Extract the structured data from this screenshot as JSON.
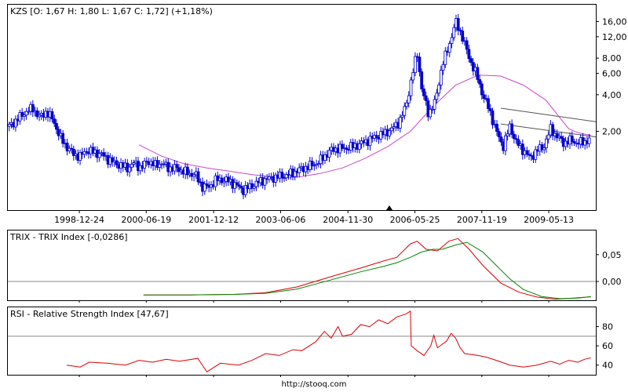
{
  "footer": "http://stooq.com",
  "colors": {
    "candle": "#0000cc",
    "moving_average": "#cc44cc",
    "trend_line": "#555555",
    "trix": "#dd0000",
    "trix_signal": "#008800",
    "rsi": "#dd0000",
    "reference_line": "#888888",
    "grid": "#cccccc"
  },
  "chart_data": [
    {
      "type": "candlestick",
      "title": "KZS [O: 1,67  H: 1,80  L: 1,67  C: 1,72] (+1,18%)",
      "y_scale": "log",
      "ylim": [
        0.45,
        22
      ],
      "y_ticks": [
        2.0,
        4.0,
        6.0,
        8.0,
        12.0,
        16.0
      ],
      "y_tick_labels": [
        "2,00",
        "4,00",
        "6,00",
        "8,00",
        "12,00",
        "16,00"
      ],
      "x_ticks": [
        "1998-12-24",
        "2000-06-19",
        "2001-12-12",
        "2003-06-06",
        "2004-11-30",
        "2006-05-25",
        "2007-11-19",
        "2009-05-13"
      ],
      "x_tick_years": [
        1998.98,
        2000.46,
        2001.95,
        2003.43,
        2004.92,
        2006.4,
        2007.88,
        2009.36
      ],
      "x_range_years": [
        1997.4,
        2010.4
      ],
      "marker_at": "2006-05-25",
      "price_series": [
        [
          1997.43,
          2.2
        ],
        [
          1997.6,
          2.5
        ],
        [
          1997.8,
          2.9
        ],
        [
          1997.95,
          3.1
        ],
        [
          1998.1,
          2.6
        ],
        [
          1998.25,
          2.9
        ],
        [
          1998.4,
          2.5
        ],
        [
          1998.55,
          1.8
        ],
        [
          1998.7,
          1.5
        ],
        [
          1998.85,
          1.3
        ],
        [
          1999.0,
          1.25
        ],
        [
          1999.15,
          1.4
        ],
        [
          1999.3,
          1.35
        ],
        [
          1999.45,
          1.3
        ],
        [
          1999.6,
          1.2
        ],
        [
          1999.75,
          1.1
        ],
        [
          1999.9,
          1.05
        ],
        [
          2000.05,
          1.0
        ],
        [
          2000.2,
          1.1
        ],
        [
          2000.35,
          1.0
        ],
        [
          2000.5,
          1.15
        ],
        [
          2000.65,
          1.05
        ],
        [
          2000.8,
          1.1
        ],
        [
          2000.95,
          1.0
        ],
        [
          2001.1,
          1.0
        ],
        [
          2001.25,
          0.95
        ],
        [
          2001.4,
          0.9
        ],
        [
          2001.55,
          0.88
        ],
        [
          2001.7,
          0.7
        ],
        [
          2001.85,
          0.7
        ],
        [
          2002.0,
          0.8
        ],
        [
          2002.15,
          0.8
        ],
        [
          2002.3,
          0.78
        ],
        [
          2002.45,
          0.72
        ],
        [
          2002.6,
          0.66
        ],
        [
          2002.75,
          0.7
        ],
        [
          2002.9,
          0.75
        ],
        [
          2003.05,
          0.8
        ],
        [
          2003.2,
          0.82
        ],
        [
          2003.35,
          0.85
        ],
        [
          2003.5,
          0.86
        ],
        [
          2003.65,
          0.9
        ],
        [
          2003.8,
          0.95
        ],
        [
          2003.95,
          1.0
        ],
        [
          2004.1,
          1.05
        ],
        [
          2004.25,
          1.1
        ],
        [
          2004.4,
          1.25
        ],
        [
          2004.55,
          1.4
        ],
        [
          2004.7,
          1.45
        ],
        [
          2004.85,
          1.45
        ],
        [
          2005.0,
          1.5
        ],
        [
          2005.15,
          1.55
        ],
        [
          2005.3,
          1.65
        ],
        [
          2005.45,
          1.75
        ],
        [
          2005.6,
          1.85
        ],
        [
          2005.75,
          1.95
        ],
        [
          2005.9,
          2.1
        ],
        [
          2006.05,
          2.4
        ],
        [
          2006.2,
          3.2
        ],
        [
          2006.35,
          6.0
        ],
        [
          2006.45,
          9.0
        ],
        [
          2006.55,
          4.5
        ],
        [
          2006.7,
          2.8
        ],
        [
          2006.85,
          3.5
        ],
        [
          2007.0,
          7.0
        ],
        [
          2007.15,
          10.0
        ],
        [
          2007.3,
          16.0
        ],
        [
          2007.45,
          12.0
        ],
        [
          2007.6,
          8.0
        ],
        [
          2007.75,
          6.0
        ],
        [
          2007.9,
          4.0
        ],
        [
          2008.05,
          3.0
        ],
        [
          2008.2,
          2.0
        ],
        [
          2008.35,
          1.5
        ],
        [
          2008.5,
          2.2
        ],
        [
          2008.65,
          1.6
        ],
        [
          2008.8,
          1.4
        ],
        [
          2008.95,
          1.2
        ],
        [
          2009.1,
          1.4
        ],
        [
          2009.25,
          1.5
        ],
        [
          2009.4,
          2.1
        ],
        [
          2009.55,
          1.8
        ],
        [
          2009.7,
          1.6
        ],
        [
          2009.85,
          1.7
        ],
        [
          2010.0,
          1.6
        ],
        [
          2010.15,
          1.65
        ],
        [
          2010.29,
          1.72
        ]
      ],
      "moving_average": [
        [
          2000.3,
          1.55
        ],
        [
          2000.8,
          1.25
        ],
        [
          2001.3,
          1.08
        ],
        [
          2001.8,
          1.0
        ],
        [
          2002.3,
          0.94
        ],
        [
          2002.8,
          0.88
        ],
        [
          2003.3,
          0.84
        ],
        [
          2003.8,
          0.84
        ],
        [
          2004.3,
          0.9
        ],
        [
          2004.8,
          1.0
        ],
        [
          2005.3,
          1.2
        ],
        [
          2005.8,
          1.5
        ],
        [
          2006.3,
          2.0
        ],
        [
          2006.8,
          3.2
        ],
        [
          2007.3,
          4.8
        ],
        [
          2007.8,
          5.8
        ],
        [
          2008.3,
          5.7
        ],
        [
          2008.8,
          4.8
        ],
        [
          2009.3,
          3.6
        ],
        [
          2009.6,
          2.6
        ],
        [
          2009.8,
          2.1
        ],
        [
          2010.0,
          1.95
        ],
        [
          2010.29,
          1.85
        ]
      ],
      "trend_lines": [
        [
          [
            2008.3,
            3.1
          ],
          [
            2010.4,
            2.4
          ]
        ],
        [
          [
            2008.3,
            2.3
          ],
          [
            2010.4,
            1.8
          ]
        ]
      ]
    },
    {
      "type": "line",
      "title": "TRIX - TRIX Index [-0,0286]",
      "ylim": [
        -0.035,
        0.095
      ],
      "y_ticks": [
        0.0,
        0.05
      ],
      "y_tick_labels": [
        "0,00",
        "0,05"
      ],
      "reference_value": 0.0,
      "series": [
        {
          "points": [
            [
              2000.4,
              -0.025
            ],
            [
              2001.4,
              -0.025
            ],
            [
              2002.4,
              -0.024
            ],
            [
              2003.1,
              -0.021
            ],
            [
              2003.8,
              -0.01
            ],
            [
              2004.5,
              0.008
            ],
            [
              2005.2,
              0.025
            ],
            [
              2005.7,
              0.038
            ],
            [
              2006.0,
              0.045
            ],
            [
              2006.3,
              0.07
            ],
            [
              2006.45,
              0.075
            ],
            [
              2006.65,
              0.06
            ],
            [
              2006.9,
              0.057
            ],
            [
              2007.15,
              0.075
            ],
            [
              2007.35,
              0.08
            ],
            [
              2007.6,
              0.06
            ],
            [
              2007.9,
              0.03
            ],
            [
              2008.3,
              -0.003
            ],
            [
              2008.7,
              -0.02
            ],
            [
              2009.1,
              -0.029
            ],
            [
              2009.5,
              -0.033
            ],
            [
              2009.9,
              -0.031
            ],
            [
              2010.29,
              -0.0286
            ]
          ]
        },
        {
          "points": [
            [
              2000.4,
              -0.025
            ],
            [
              2001.4,
              -0.025
            ],
            [
              2002.4,
              -0.024
            ],
            [
              2003.1,
              -0.022
            ],
            [
              2003.8,
              -0.014
            ],
            [
              2004.5,
              0.002
            ],
            [
              2005.2,
              0.018
            ],
            [
              2005.7,
              0.028
            ],
            [
              2006.0,
              0.035
            ],
            [
              2006.3,
              0.045
            ],
            [
              2006.55,
              0.055
            ],
            [
              2006.8,
              0.06
            ],
            [
              2007.0,
              0.06
            ],
            [
              2007.3,
              0.068
            ],
            [
              2007.55,
              0.073
            ],
            [
              2007.9,
              0.055
            ],
            [
              2008.2,
              0.03
            ],
            [
              2008.5,
              0.005
            ],
            [
              2008.8,
              -0.015
            ],
            [
              2009.2,
              -0.028
            ],
            [
              2009.6,
              -0.032
            ],
            [
              2010.0,
              -0.031
            ],
            [
              2010.29,
              -0.028
            ]
          ]
        }
      ]
    },
    {
      "type": "line",
      "title": "RSI - Relative Strength Index [47,67]",
      "ylim": [
        30,
        100
      ],
      "y_ticks": [
        40,
        60,
        80
      ],
      "y_tick_labels": [
        "40",
        "60",
        "80"
      ],
      "reference_value": 70,
      "series": [
        {
          "points": [
            [
              1998.7,
              40
            ],
            [
              1999.0,
              38
            ],
            [
              1999.2,
              43
            ],
            [
              1999.6,
              42
            ],
            [
              2000.0,
              40
            ],
            [
              2000.3,
              45
            ],
            [
              2000.6,
              43
            ],
            [
              2000.9,
              46
            ],
            [
              2001.2,
              44
            ],
            [
              2001.6,
              47
            ],
            [
              2001.8,
              33
            ],
            [
              2002.1,
              42
            ],
            [
              2002.5,
              40
            ],
            [
              2002.8,
              45
            ],
            [
              2003.1,
              52
            ],
            [
              2003.4,
              50
            ],
            [
              2003.7,
              56
            ],
            [
              2003.9,
              55
            ],
            [
              2004.2,
              64
            ],
            [
              2004.4,
              75
            ],
            [
              2004.55,
              68
            ],
            [
              2004.7,
              80
            ],
            [
              2004.8,
              70
            ],
            [
              2005.0,
              72
            ],
            [
              2005.2,
              82
            ],
            [
              2005.4,
              80
            ],
            [
              2005.6,
              87
            ],
            [
              2005.8,
              83
            ],
            [
              2006.0,
              90
            ],
            [
              2006.2,
              93
            ],
            [
              2006.3,
              96
            ],
            [
              2006.32,
              60
            ],
            [
              2006.45,
              55
            ],
            [
              2006.6,
              50
            ],
            [
              2006.75,
              60
            ],
            [
              2006.82,
              71
            ],
            [
              2006.9,
              58
            ],
            [
              2007.1,
              65
            ],
            [
              2007.2,
              73
            ],
            [
              2007.3,
              68
            ],
            [
              2007.4,
              58
            ],
            [
              2007.5,
              52
            ],
            [
              2007.8,
              50
            ],
            [
              2008.0,
              48
            ],
            [
              2008.2,
              45
            ],
            [
              2008.5,
              40
            ],
            [
              2008.8,
              38
            ],
            [
              2009.1,
              40
            ],
            [
              2009.4,
              44
            ],
            [
              2009.6,
              41
            ],
            [
              2009.8,
              45
            ],
            [
              2010.0,
              43
            ],
            [
              2010.15,
              46
            ],
            [
              2010.29,
              47.67
            ]
          ]
        }
      ]
    }
  ]
}
